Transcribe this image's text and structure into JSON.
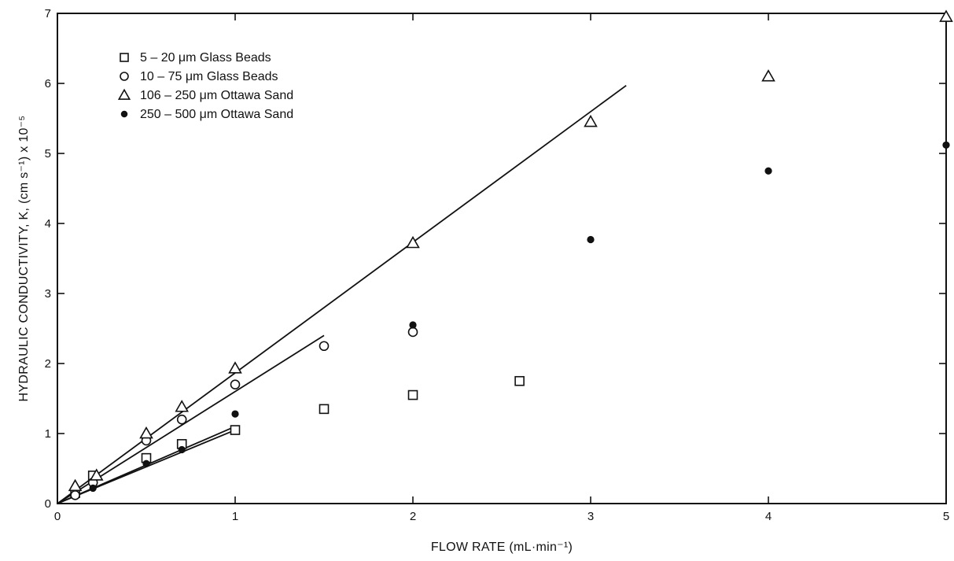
{
  "chart_data": {
    "type": "scatter",
    "xlabel": "FLOW RATE (mL·min⁻¹)",
    "ylabel": "HYDRAULIC CONDUCTIVITY, K, (cm s⁻¹) x 10⁻⁵",
    "xlim": [
      0,
      5
    ],
    "ylim": [
      0,
      7
    ],
    "xticks": [
      "0",
      "1",
      "2",
      "3",
      "4",
      "5"
    ],
    "yticks": [
      "0",
      "1",
      "2",
      "3",
      "4",
      "5",
      "6",
      "7"
    ],
    "grid": false,
    "legend_position": "top-left",
    "series": [
      {
        "name": "5 – 20 μm Glass Beads",
        "marker": "square",
        "points": [
          [
            0.1,
            0.15
          ],
          [
            0.2,
            0.4
          ],
          [
            0.5,
            0.65
          ],
          [
            0.7,
            0.85
          ],
          [
            1.0,
            1.05
          ],
          [
            1.5,
            1.35
          ],
          [
            2.0,
            1.55
          ],
          [
            2.6,
            1.75
          ]
        ],
        "fit_line": [
          [
            0,
            0
          ],
          [
            1.0,
            1.1
          ]
        ]
      },
      {
        "name": "10 – 75 μm Glass Beads",
        "marker": "circle",
        "points": [
          [
            0.1,
            0.12
          ],
          [
            0.2,
            0.3
          ],
          [
            0.5,
            0.9
          ],
          [
            0.7,
            1.2
          ],
          [
            1.0,
            1.7
          ],
          [
            1.5,
            2.25
          ],
          [
            2.0,
            2.45
          ]
        ],
        "fit_line": [
          [
            0,
            0
          ],
          [
            1.5,
            2.4
          ]
        ]
      },
      {
        "name": "106 – 250 μm Ottawa Sand",
        "marker": "triangle",
        "points": [
          [
            0.1,
            0.25
          ],
          [
            0.22,
            0.4
          ],
          [
            0.5,
            1.0
          ],
          [
            0.7,
            1.38
          ],
          [
            1.0,
            1.93
          ],
          [
            2.0,
            3.72
          ],
          [
            3.0,
            5.45
          ],
          [
            4.0,
            6.1
          ],
          [
            5.0,
            6.95
          ]
        ],
        "fit_line": [
          [
            0,
            0
          ],
          [
            3.2,
            5.97
          ]
        ]
      },
      {
        "name": "250 – 500 μm Ottawa Sand",
        "marker": "filled-circle",
        "points": [
          [
            0.2,
            0.22
          ],
          [
            0.5,
            0.57
          ],
          [
            0.7,
            0.77
          ],
          [
            1.0,
            1.28
          ],
          [
            2.0,
            2.55
          ],
          [
            3.0,
            3.77
          ],
          [
            4.0,
            4.75
          ],
          [
            5.0,
            5.12
          ]
        ],
        "fit_line": [
          [
            0,
            0
          ],
          [
            1.0,
            1.05
          ]
        ]
      }
    ]
  }
}
